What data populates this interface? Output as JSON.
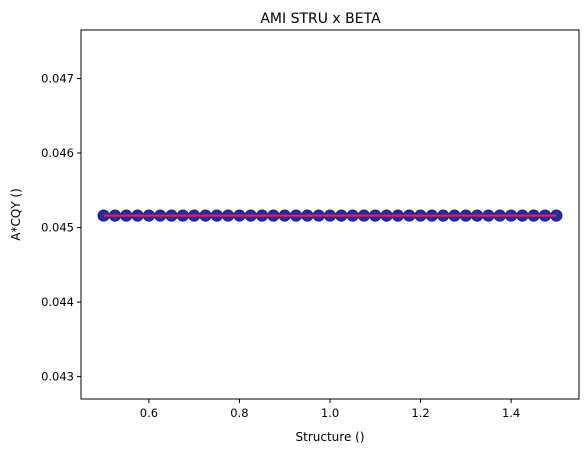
{
  "chart_data": {
    "type": "scatter",
    "title": "AMI STRU x BETA",
    "xlabel": "Structure ()",
    "ylabel": "A*CQY ()",
    "xlim": [
      0.45,
      1.55
    ],
    "ylim": [
      0.0427,
      0.04765
    ],
    "xticks": [
      0.6,
      0.8,
      1.0,
      1.2,
      1.4
    ],
    "xtick_labels": [
      "0.6",
      "0.8",
      "1.0",
      "1.2",
      "1.4"
    ],
    "yticks": [
      0.043,
      0.044,
      0.045,
      0.046,
      0.047
    ],
    "ytick_labels": [
      "0.043",
      "0.044",
      "0.045",
      "0.046",
      "0.047"
    ],
    "grid": false,
    "series": [
      {
        "kind": "scatter",
        "marker_edge_color": "#1f1f8f",
        "marker_face_color": "#2a2a9a",
        "x": [
          0.5,
          0.525,
          0.55,
          0.575,
          0.6,
          0.625,
          0.65,
          0.675,
          0.7,
          0.725,
          0.75,
          0.775,
          0.8,
          0.825,
          0.85,
          0.875,
          0.9,
          0.925,
          0.95,
          0.975,
          1.0,
          1.025,
          1.05,
          1.075,
          1.1,
          1.125,
          1.15,
          1.175,
          1.2,
          1.225,
          1.25,
          1.275,
          1.3,
          1.325,
          1.35,
          1.375,
          1.4,
          1.425,
          1.45,
          1.475,
          1.5
        ],
        "y_constant": 0.04516
      },
      {
        "kind": "line",
        "color": "#ff1a4a",
        "x": [
          0.5,
          1.5
        ],
        "y": [
          0.04516,
          0.04516
        ]
      }
    ]
  }
}
